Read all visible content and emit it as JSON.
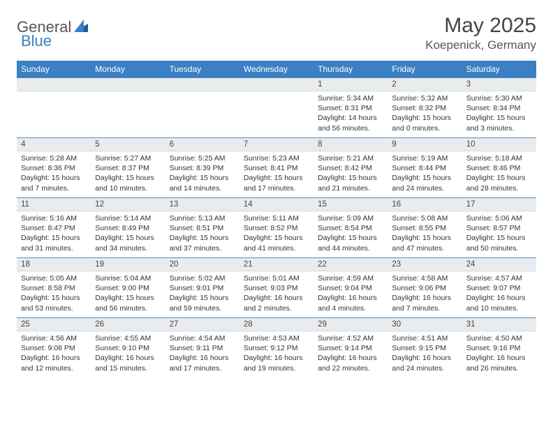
{
  "brand": {
    "part1": "General",
    "part2": "Blue"
  },
  "title": "May 2025",
  "location": "Koepenick, Germany",
  "columns": [
    "Sunday",
    "Monday",
    "Tuesday",
    "Wednesday",
    "Thursday",
    "Friday",
    "Saturday"
  ],
  "colors": {
    "header_bg": "#3b7fc4",
    "header_text": "#ffffff",
    "daynum_bg": "#e9ecef",
    "row_border": "#5a8cbf",
    "body_text": "#333333",
    "page_bg": "#ffffff"
  },
  "weeks": [
    [
      {
        "n": "",
        "sr": "",
        "ss": "",
        "dl": ""
      },
      {
        "n": "",
        "sr": "",
        "ss": "",
        "dl": ""
      },
      {
        "n": "",
        "sr": "",
        "ss": "",
        "dl": ""
      },
      {
        "n": "",
        "sr": "",
        "ss": "",
        "dl": ""
      },
      {
        "n": "1",
        "sr": "Sunrise: 5:34 AM",
        "ss": "Sunset: 8:31 PM",
        "dl": "Daylight: 14 hours and 56 minutes."
      },
      {
        "n": "2",
        "sr": "Sunrise: 5:32 AM",
        "ss": "Sunset: 8:32 PM",
        "dl": "Daylight: 15 hours and 0 minutes."
      },
      {
        "n": "3",
        "sr": "Sunrise: 5:30 AM",
        "ss": "Sunset: 8:34 PM",
        "dl": "Daylight: 15 hours and 3 minutes."
      }
    ],
    [
      {
        "n": "4",
        "sr": "Sunrise: 5:28 AM",
        "ss": "Sunset: 8:36 PM",
        "dl": "Daylight: 15 hours and 7 minutes."
      },
      {
        "n": "5",
        "sr": "Sunrise: 5:27 AM",
        "ss": "Sunset: 8:37 PM",
        "dl": "Daylight: 15 hours and 10 minutes."
      },
      {
        "n": "6",
        "sr": "Sunrise: 5:25 AM",
        "ss": "Sunset: 8:39 PM",
        "dl": "Daylight: 15 hours and 14 minutes."
      },
      {
        "n": "7",
        "sr": "Sunrise: 5:23 AM",
        "ss": "Sunset: 8:41 PM",
        "dl": "Daylight: 15 hours and 17 minutes."
      },
      {
        "n": "8",
        "sr": "Sunrise: 5:21 AM",
        "ss": "Sunset: 8:42 PM",
        "dl": "Daylight: 15 hours and 21 minutes."
      },
      {
        "n": "9",
        "sr": "Sunrise: 5:19 AM",
        "ss": "Sunset: 8:44 PM",
        "dl": "Daylight: 15 hours and 24 minutes."
      },
      {
        "n": "10",
        "sr": "Sunrise: 5:18 AM",
        "ss": "Sunset: 8:46 PM",
        "dl": "Daylight: 15 hours and 28 minutes."
      }
    ],
    [
      {
        "n": "11",
        "sr": "Sunrise: 5:16 AM",
        "ss": "Sunset: 8:47 PM",
        "dl": "Daylight: 15 hours and 31 minutes."
      },
      {
        "n": "12",
        "sr": "Sunrise: 5:14 AM",
        "ss": "Sunset: 8:49 PM",
        "dl": "Daylight: 15 hours and 34 minutes."
      },
      {
        "n": "13",
        "sr": "Sunrise: 5:13 AM",
        "ss": "Sunset: 8:51 PM",
        "dl": "Daylight: 15 hours and 37 minutes."
      },
      {
        "n": "14",
        "sr": "Sunrise: 5:11 AM",
        "ss": "Sunset: 8:52 PM",
        "dl": "Daylight: 15 hours and 41 minutes."
      },
      {
        "n": "15",
        "sr": "Sunrise: 5:09 AM",
        "ss": "Sunset: 8:54 PM",
        "dl": "Daylight: 15 hours and 44 minutes."
      },
      {
        "n": "16",
        "sr": "Sunrise: 5:08 AM",
        "ss": "Sunset: 8:55 PM",
        "dl": "Daylight: 15 hours and 47 minutes."
      },
      {
        "n": "17",
        "sr": "Sunrise: 5:06 AM",
        "ss": "Sunset: 8:57 PM",
        "dl": "Daylight: 15 hours and 50 minutes."
      }
    ],
    [
      {
        "n": "18",
        "sr": "Sunrise: 5:05 AM",
        "ss": "Sunset: 8:58 PM",
        "dl": "Daylight: 15 hours and 53 minutes."
      },
      {
        "n": "19",
        "sr": "Sunrise: 5:04 AM",
        "ss": "Sunset: 9:00 PM",
        "dl": "Daylight: 15 hours and 56 minutes."
      },
      {
        "n": "20",
        "sr": "Sunrise: 5:02 AM",
        "ss": "Sunset: 9:01 PM",
        "dl": "Daylight: 15 hours and 59 minutes."
      },
      {
        "n": "21",
        "sr": "Sunrise: 5:01 AM",
        "ss": "Sunset: 9:03 PM",
        "dl": "Daylight: 16 hours and 2 minutes."
      },
      {
        "n": "22",
        "sr": "Sunrise: 4:59 AM",
        "ss": "Sunset: 9:04 PM",
        "dl": "Daylight: 16 hours and 4 minutes."
      },
      {
        "n": "23",
        "sr": "Sunrise: 4:58 AM",
        "ss": "Sunset: 9:06 PM",
        "dl": "Daylight: 16 hours and 7 minutes."
      },
      {
        "n": "24",
        "sr": "Sunrise: 4:57 AM",
        "ss": "Sunset: 9:07 PM",
        "dl": "Daylight: 16 hours and 10 minutes."
      }
    ],
    [
      {
        "n": "25",
        "sr": "Sunrise: 4:56 AM",
        "ss": "Sunset: 9:08 PM",
        "dl": "Daylight: 16 hours and 12 minutes."
      },
      {
        "n": "26",
        "sr": "Sunrise: 4:55 AM",
        "ss": "Sunset: 9:10 PM",
        "dl": "Daylight: 16 hours and 15 minutes."
      },
      {
        "n": "27",
        "sr": "Sunrise: 4:54 AM",
        "ss": "Sunset: 9:11 PM",
        "dl": "Daylight: 16 hours and 17 minutes."
      },
      {
        "n": "28",
        "sr": "Sunrise: 4:53 AM",
        "ss": "Sunset: 9:12 PM",
        "dl": "Daylight: 16 hours and 19 minutes."
      },
      {
        "n": "29",
        "sr": "Sunrise: 4:52 AM",
        "ss": "Sunset: 9:14 PM",
        "dl": "Daylight: 16 hours and 22 minutes."
      },
      {
        "n": "30",
        "sr": "Sunrise: 4:51 AM",
        "ss": "Sunset: 9:15 PM",
        "dl": "Daylight: 16 hours and 24 minutes."
      },
      {
        "n": "31",
        "sr": "Sunrise: 4:50 AM",
        "ss": "Sunset: 9:16 PM",
        "dl": "Daylight: 16 hours and 26 minutes."
      }
    ]
  ]
}
